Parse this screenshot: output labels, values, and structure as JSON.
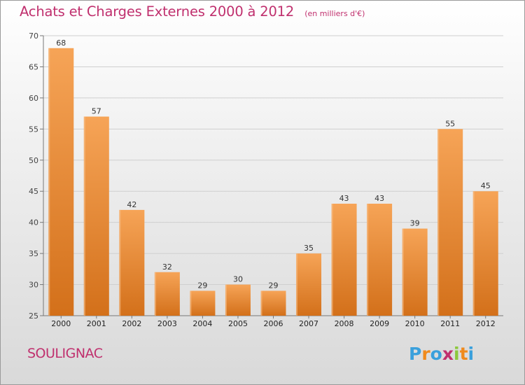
{
  "page": {
    "title": "Achats et Charges Externes 2000 à 2012",
    "unit": "(en milliers d'€)",
    "commune": "SOULIGNAC",
    "logo_text": "Proxiti"
  },
  "colors": {
    "title": "#c0306e",
    "bar_top": "#f6a457",
    "bar_bottom": "#d3701a",
    "logo_letters": [
      "#3aa0dc",
      "#f08a1c",
      "#3aa0dc",
      "#c0306e",
      "#8cc83c",
      "#f08a1c",
      "#3aa0dc"
    ]
  },
  "chart_data": {
    "type": "bar",
    "categories": [
      "2000",
      "2001",
      "2002",
      "2003",
      "2004",
      "2005",
      "2006",
      "2007",
      "2008",
      "2009",
      "2010",
      "2011",
      "2012"
    ],
    "values": [
      68,
      57,
      42,
      32,
      29,
      30,
      29,
      35,
      43,
      43,
      39,
      55,
      45
    ],
    "ylim": [
      25,
      70
    ],
    "yticks": [
      25,
      30,
      35,
      40,
      45,
      50,
      55,
      60,
      65,
      70
    ],
    "grid": true,
    "legend": "none"
  }
}
